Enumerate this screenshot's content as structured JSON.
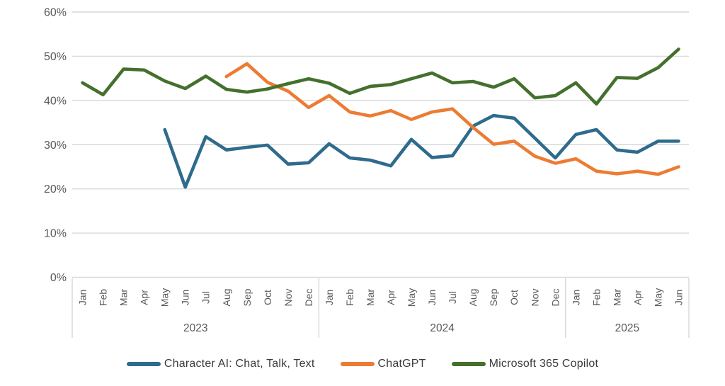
{
  "chart_data": {
    "type": "line",
    "title": "",
    "xlabel": "",
    "ylabel": "",
    "months": [
      "Jan",
      "Feb",
      "Mar",
      "Apr",
      "May",
      "Jun",
      "Jul",
      "Aug",
      "Sep",
      "Oct",
      "Nov",
      "Dec",
      "Jan",
      "Feb",
      "Mar",
      "Apr",
      "May",
      "Jun",
      "Jul",
      "Aug",
      "Sep",
      "Oct",
      "Nov",
      "Dec",
      "Jan",
      "Feb",
      "Mar",
      "Apr",
      "May",
      "Jun"
    ],
    "year_groups": [
      {
        "label": "2023",
        "start": 0,
        "count": 12
      },
      {
        "label": "2024",
        "start": 12,
        "count": 12
      },
      {
        "label": "2025",
        "start": 24,
        "count": 6
      }
    ],
    "y_axis": {
      "min": 0,
      "max": 60,
      "step": 10,
      "tick_labels": [
        "0%",
        "10%",
        "20%",
        "30%",
        "40%",
        "50%",
        "60%"
      ]
    },
    "grid": true,
    "legend_position": "bottom",
    "series": [
      {
        "name": "Character AI: Chat, Talk, Text",
        "color": "#2E6B8D",
        "values": [
          null,
          null,
          null,
          null,
          33.4,
          20.4,
          31.8,
          28.8,
          29.4,
          29.9,
          25.6,
          25.9,
          30.2,
          27.0,
          26.5,
          25.2,
          31.2,
          27.1,
          27.5,
          34.2,
          36.6,
          36.0,
          31.5,
          27.0,
          32.3,
          33.4,
          28.8,
          28.3,
          30.8,
          30.8
        ]
      },
      {
        "name": "ChatGPT",
        "color": "#EC7C33",
        "values": [
          null,
          null,
          null,
          null,
          null,
          null,
          null,
          45.4,
          48.3,
          44.1,
          42.1,
          38.4,
          41.1,
          37.4,
          36.5,
          37.7,
          35.7,
          37.4,
          38.1,
          33.9,
          30.1,
          30.8,
          27.4,
          25.8,
          26.8,
          24.0,
          23.4,
          24.0,
          23.3,
          25.0
        ]
      },
      {
        "name": "Microsoft 365 Copilot",
        "color": "#44702D",
        "values": [
          44.0,
          41.3,
          47.1,
          46.9,
          44.4,
          42.7,
          45.5,
          42.5,
          41.9,
          42.6,
          43.8,
          44.9,
          43.9,
          41.6,
          43.2,
          43.6,
          44.9,
          46.2,
          44.0,
          44.3,
          43.0,
          44.9,
          40.6,
          41.1,
          44.0,
          39.2,
          45.2,
          45.0,
          47.4,
          51.6
        ]
      }
    ],
    "style": {
      "grid_color": "#D9D9D9",
      "divider_color": "#D0D0D0",
      "axis_text_color": "#595959",
      "line_width": 4.6
    }
  }
}
